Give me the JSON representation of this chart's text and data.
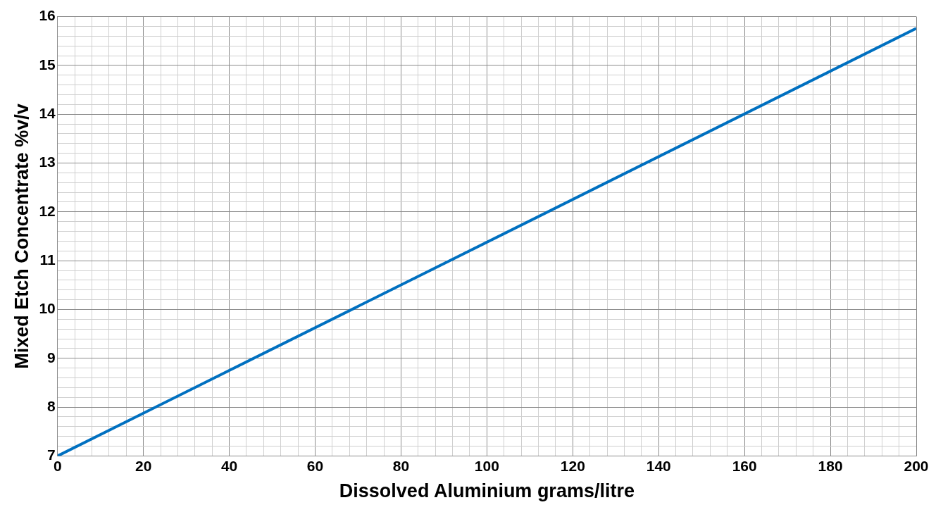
{
  "chart_data": {
    "type": "line",
    "xlabel": "Dissolved Aluminium grams/litre",
    "ylabel": "Mixed Etch Concentrate %v/v",
    "x": [
      0,
      200
    ],
    "series": [
      {
        "color": "#0070c0",
        "values": [
          7,
          15.76
        ]
      }
    ],
    "xlim": [
      0,
      200
    ],
    "ylim": [
      7,
      16
    ],
    "xticks": [
      0,
      {
        "value": 4,
        "label": null
      },
      {
        "value": 8,
        "label": null
      },
      {
        "value": 12,
        "label": null
      },
      {
        "value": 16,
        "label": null
      },
      20,
      {
        "value": 24,
        "label": null
      },
      {
        "value": 28,
        "label": null
      },
      {
        "value": 32,
        "label": null
      },
      {
        "value": 36,
        "label": null
      },
      40,
      {
        "value": 44,
        "label": null
      },
      {
        "value": 48,
        "label": null
      },
      {
        "value": 52,
        "label": null
      },
      {
        "value": 56,
        "label": null
      },
      60,
      {
        "value": 64,
        "label": null
      },
      {
        "value": 68,
        "label": null
      },
      {
        "value": 72,
        "label": null
      },
      {
        "value": 76,
        "label": null
      },
      80,
      {
        "value": 84,
        "label": null
      },
      {
        "value": 88,
        "label": null
      },
      {
        "value": 92,
        "label": null
      },
      {
        "value": 96,
        "label": null
      },
      100,
      {
        "value": 104,
        "label": null
      },
      {
        "value": 108,
        "label": null
      },
      {
        "value": 112,
        "label": null
      },
      {
        "value": 116,
        "label": null
      },
      120,
      {
        "value": 124,
        "label": null
      },
      {
        "value": 128,
        "label": null
      },
      {
        "value": 132,
        "label": null
      },
      {
        "value": 136,
        "label": null
      },
      140,
      {
        "value": 144,
        "label": null
      },
      {
        "value": 148,
        "label": null
      },
      {
        "value": 152,
        "label": null
      },
      {
        "value": 156,
        "label": null
      },
      160,
      {
        "value": 164,
        "label": null
      },
      {
        "value": 168,
        "label": null
      },
      {
        "value": 172,
        "label": null
      },
      {
        "value": 176,
        "label": null
      },
      180,
      {
        "value": 184,
        "label": null
      },
      {
        "value": 188,
        "label": null
      },
      {
        "value": 192,
        "label": null
      },
      {
        "value": 196,
        "label": null
      },
      200
    ],
    "yticks": [
      7,
      {
        "value": 7.2,
        "label": null
      },
      {
        "value": 7.4,
        "label": null
      },
      {
        "value": 7.6,
        "label": null
      },
      {
        "value": 7.8,
        "label": null
      },
      8,
      {
        "value": 8.2,
        "label": null
      },
      {
        "value": 8.4,
        "label": null
      },
      {
        "value": 8.6,
        "label": null
      },
      {
        "value": 8.8,
        "label": null
      },
      9,
      {
        "value": 9.2,
        "label": null
      },
      {
        "value": 9.4,
        "label": null
      },
      {
        "value": 9.6,
        "label": null
      },
      {
        "value": 9.8,
        "label": null
      },
      10,
      {
        "value": 10.2,
        "label": null
      },
      {
        "value": 10.4,
        "label": null
      },
      {
        "value": 10.6,
        "label": null
      },
      {
        "value": 10.8,
        "label": null
      },
      11,
      {
        "value": 11.2,
        "label": null
      },
      {
        "value": 11.4,
        "label": null
      },
      {
        "value": 11.6,
        "label": null
      },
      {
        "value": 11.8,
        "label": null
      },
      12,
      {
        "value": 12.2,
        "label": null
      },
      {
        "value": 12.4,
        "label": null
      },
      {
        "value": 12.6,
        "label": null
      },
      {
        "value": 12.8,
        "label": null
      },
      13,
      {
        "value": 13.2,
        "label": null
      },
      {
        "value": 13.4,
        "label": null
      },
      {
        "value": 13.6,
        "label": null
      },
      {
        "value": 13.8,
        "label": null
      },
      14,
      {
        "value": 14.2,
        "label": null
      },
      {
        "value": 14.4,
        "label": null
      },
      {
        "value": 14.6,
        "label": null
      },
      {
        "value": 14.8,
        "label": null
      },
      15,
      {
        "value": 15.2,
        "label": null
      },
      {
        "value": 15.4,
        "label": null
      },
      {
        "value": 15.6,
        "label": null
      },
      {
        "value": 15.8,
        "label": null
      },
      16
    ],
    "grid": true,
    "legend": false,
    "marker": "none",
    "line_style": "solid"
  }
}
